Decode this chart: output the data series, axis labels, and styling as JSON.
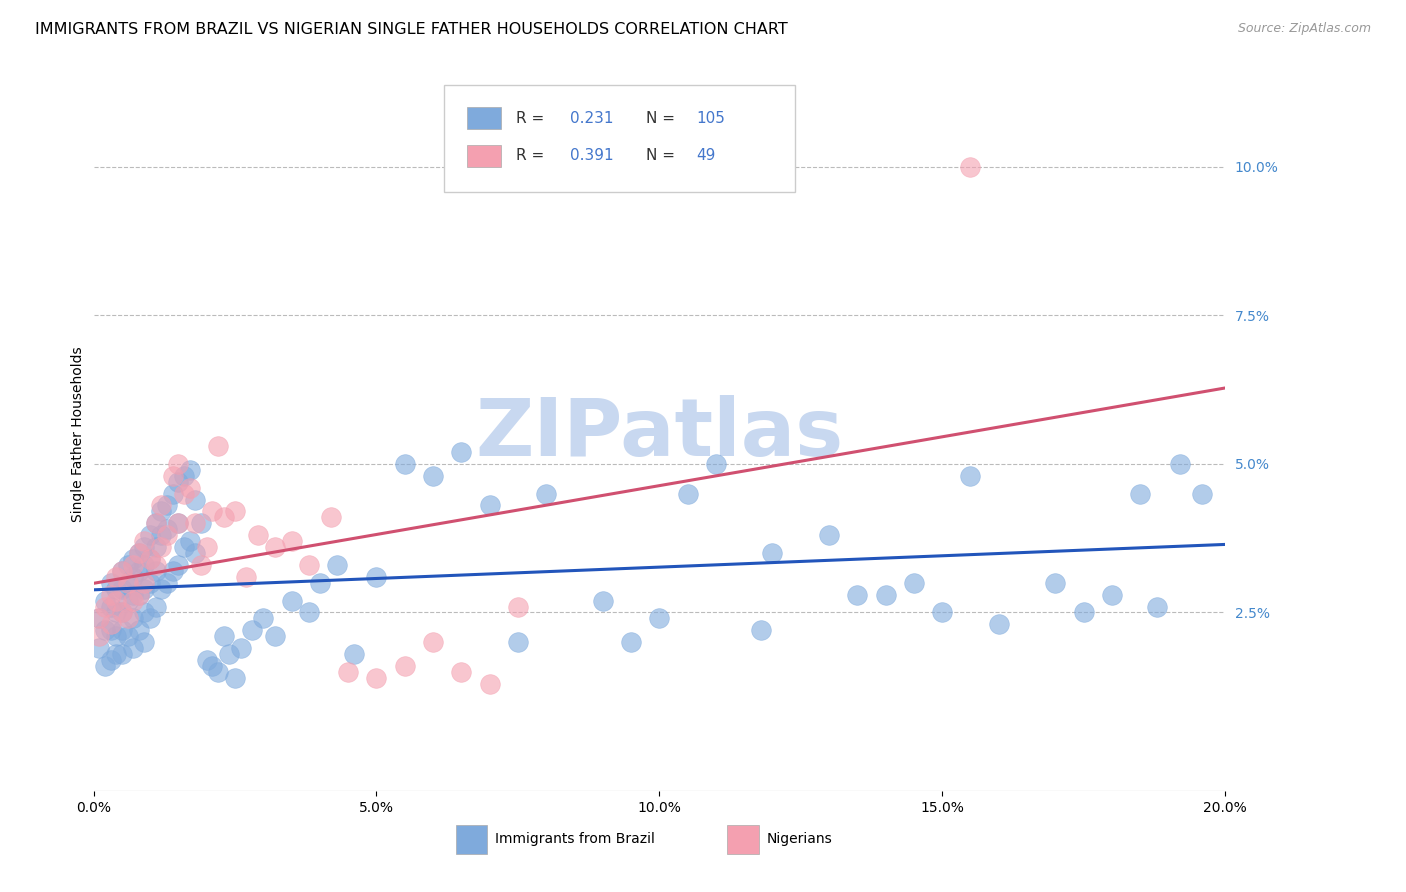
{
  "title": "IMMIGRANTS FROM BRAZIL VS NIGERIAN SINGLE FATHER HOUSEHOLDS CORRELATION CHART",
  "source": "Source: ZipAtlas.com",
  "ylabel": "Single Father Households",
  "xlim": [
    0.0,
    0.2
  ],
  "ylim": [
    -0.005,
    0.115
  ],
  "x_ticks": [
    0.0,
    0.05,
    0.1,
    0.15,
    0.2
  ],
  "x_tick_labels": [
    "0.0%",
    "5.0%",
    "10.0%",
    "15.0%",
    "20.0%"
  ],
  "y_ticks_right": [
    0.025,
    0.05,
    0.075,
    0.1
  ],
  "y_tick_labels_right": [
    "2.5%",
    "5.0%",
    "7.5%",
    "10.0%"
  ],
  "brazil_color": "#7faadc",
  "nigeria_color": "#f4a0b0",
  "brazil_line_color": "#2255bb",
  "nigeria_line_color": "#d05070",
  "brazil_R": 0.231,
  "brazil_N": 105,
  "nigeria_R": 0.391,
  "nigeria_N": 49,
  "watermark": "ZIPatlas",
  "watermark_color": "#c8d8f0",
  "background_color": "#ffffff",
  "grid_color": "#bbbbbb",
  "title_fontsize": 11.5,
  "axis_label_fontsize": 10,
  "tick_fontsize": 10,
  "brazil_x": [
    0.001,
    0.001,
    0.002,
    0.002,
    0.002,
    0.003,
    0.003,
    0.003,
    0.003,
    0.004,
    0.004,
    0.004,
    0.004,
    0.005,
    0.005,
    0.005,
    0.005,
    0.005,
    0.006,
    0.006,
    0.006,
    0.006,
    0.007,
    0.007,
    0.007,
    0.007,
    0.007,
    0.008,
    0.008,
    0.008,
    0.008,
    0.009,
    0.009,
    0.009,
    0.009,
    0.009,
    0.01,
    0.01,
    0.01,
    0.01,
    0.011,
    0.011,
    0.011,
    0.011,
    0.012,
    0.012,
    0.012,
    0.013,
    0.013,
    0.013,
    0.014,
    0.014,
    0.015,
    0.015,
    0.015,
    0.016,
    0.016,
    0.017,
    0.017,
    0.018,
    0.018,
    0.019,
    0.02,
    0.021,
    0.022,
    0.023,
    0.024,
    0.025,
    0.026,
    0.028,
    0.03,
    0.032,
    0.035,
    0.038,
    0.04,
    0.043,
    0.046,
    0.05,
    0.055,
    0.06,
    0.065,
    0.07,
    0.075,
    0.08,
    0.09,
    0.095,
    0.1,
    0.11,
    0.12,
    0.13,
    0.14,
    0.15,
    0.16,
    0.17,
    0.175,
    0.18,
    0.185,
    0.188,
    0.192,
    0.196,
    0.155,
    0.145,
    0.135,
    0.118,
    0.105
  ],
  "brazil_y": [
    0.024,
    0.019,
    0.027,
    0.022,
    0.016,
    0.03,
    0.026,
    0.022,
    0.017,
    0.029,
    0.025,
    0.021,
    0.018,
    0.032,
    0.029,
    0.025,
    0.022,
    0.018,
    0.033,
    0.03,
    0.027,
    0.021,
    0.034,
    0.031,
    0.028,
    0.024,
    0.019,
    0.035,
    0.032,
    0.028,
    0.022,
    0.036,
    0.033,
    0.029,
    0.025,
    0.02,
    0.038,
    0.034,
    0.03,
    0.024,
    0.04,
    0.036,
    0.032,
    0.026,
    0.042,
    0.038,
    0.029,
    0.043,
    0.039,
    0.03,
    0.045,
    0.032,
    0.047,
    0.04,
    0.033,
    0.048,
    0.036,
    0.049,
    0.037,
    0.044,
    0.035,
    0.04,
    0.017,
    0.016,
    0.015,
    0.021,
    0.018,
    0.014,
    0.019,
    0.022,
    0.024,
    0.021,
    0.027,
    0.025,
    0.03,
    0.033,
    0.018,
    0.031,
    0.05,
    0.048,
    0.052,
    0.043,
    0.02,
    0.045,
    0.027,
    0.02,
    0.024,
    0.05,
    0.035,
    0.038,
    0.028,
    0.025,
    0.023,
    0.03,
    0.025,
    0.028,
    0.045,
    0.026,
    0.05,
    0.045,
    0.048,
    0.03,
    0.028,
    0.022,
    0.045
  ],
  "nigeria_x": [
    0.001,
    0.001,
    0.002,
    0.003,
    0.003,
    0.004,
    0.004,
    0.005,
    0.005,
    0.006,
    0.006,
    0.007,
    0.007,
    0.008,
    0.008,
    0.009,
    0.009,
    0.01,
    0.011,
    0.011,
    0.012,
    0.012,
    0.013,
    0.014,
    0.015,
    0.015,
    0.016,
    0.017,
    0.018,
    0.019,
    0.02,
    0.021,
    0.022,
    0.023,
    0.025,
    0.027,
    0.029,
    0.032,
    0.035,
    0.038,
    0.042,
    0.045,
    0.05,
    0.055,
    0.06,
    0.065,
    0.07,
    0.075,
    0.155
  ],
  "nigeria_y": [
    0.024,
    0.021,
    0.026,
    0.028,
    0.023,
    0.031,
    0.027,
    0.032,
    0.025,
    0.03,
    0.024,
    0.033,
    0.027,
    0.035,
    0.028,
    0.037,
    0.03,
    0.034,
    0.04,
    0.033,
    0.043,
    0.036,
    0.038,
    0.048,
    0.05,
    0.04,
    0.045,
    0.046,
    0.04,
    0.033,
    0.036,
    0.042,
    0.053,
    0.041,
    0.042,
    0.031,
    0.038,
    0.036,
    0.037,
    0.033,
    0.041,
    0.015,
    0.014,
    0.016,
    0.02,
    0.015,
    0.013,
    0.026,
    0.1
  ]
}
